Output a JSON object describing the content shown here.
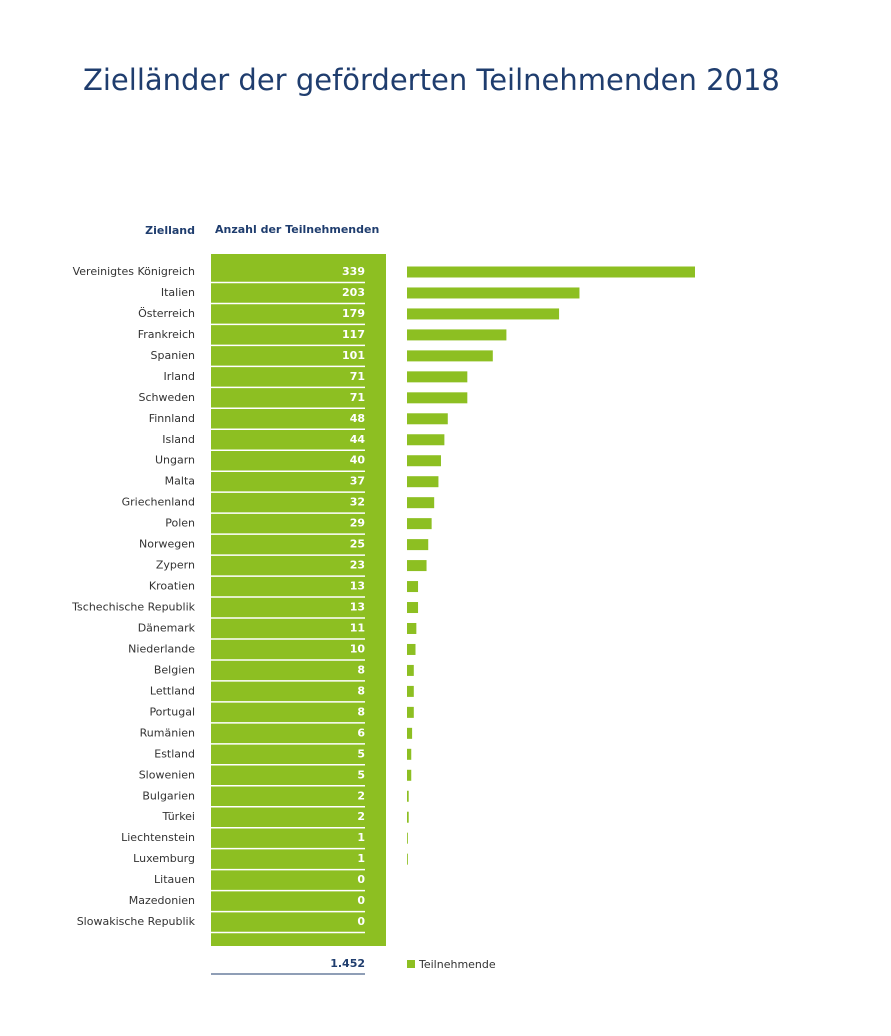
{
  "chart_data": {
    "type": "bar",
    "orientation": "horizontal",
    "title": "Zielländer der geförderten Teilnehmenden 2018",
    "column_headers": [
      "Zielland",
      "Anzahl der Teilnehmenden"
    ],
    "categories": [
      "Vereinigtes Königreich",
      "Italien",
      "Österreich",
      "Frankreich",
      "Spanien",
      "Irland",
      "Schweden",
      "Finnland",
      "Island",
      "Ungarn",
      "Malta",
      "Griechenland",
      "Polen",
      "Norwegen",
      "Zypern",
      "Kroatien",
      "Tschechische Republik",
      "Dänemark",
      "Niederlande",
      "Belgien",
      "Lettland",
      "Portugal",
      "Rumänien",
      "Estland",
      "Slowenien",
      "Bulgarien",
      "Türkei",
      "Liechtenstein",
      "Luxemburg",
      "Litauen",
      "Mazedonien",
      "Slowakische Republik"
    ],
    "series": [
      {
        "name": "Teilnehmende",
        "color": "#8dbf22",
        "values": [
          339,
          203,
          179,
          117,
          101,
          71,
          71,
          48,
          44,
          40,
          37,
          32,
          29,
          25,
          23,
          13,
          13,
          11,
          10,
          8,
          8,
          8,
          6,
          5,
          5,
          2,
          2,
          1,
          1,
          0,
          0,
          0
        ]
      }
    ],
    "total": "1.452"
  }
}
